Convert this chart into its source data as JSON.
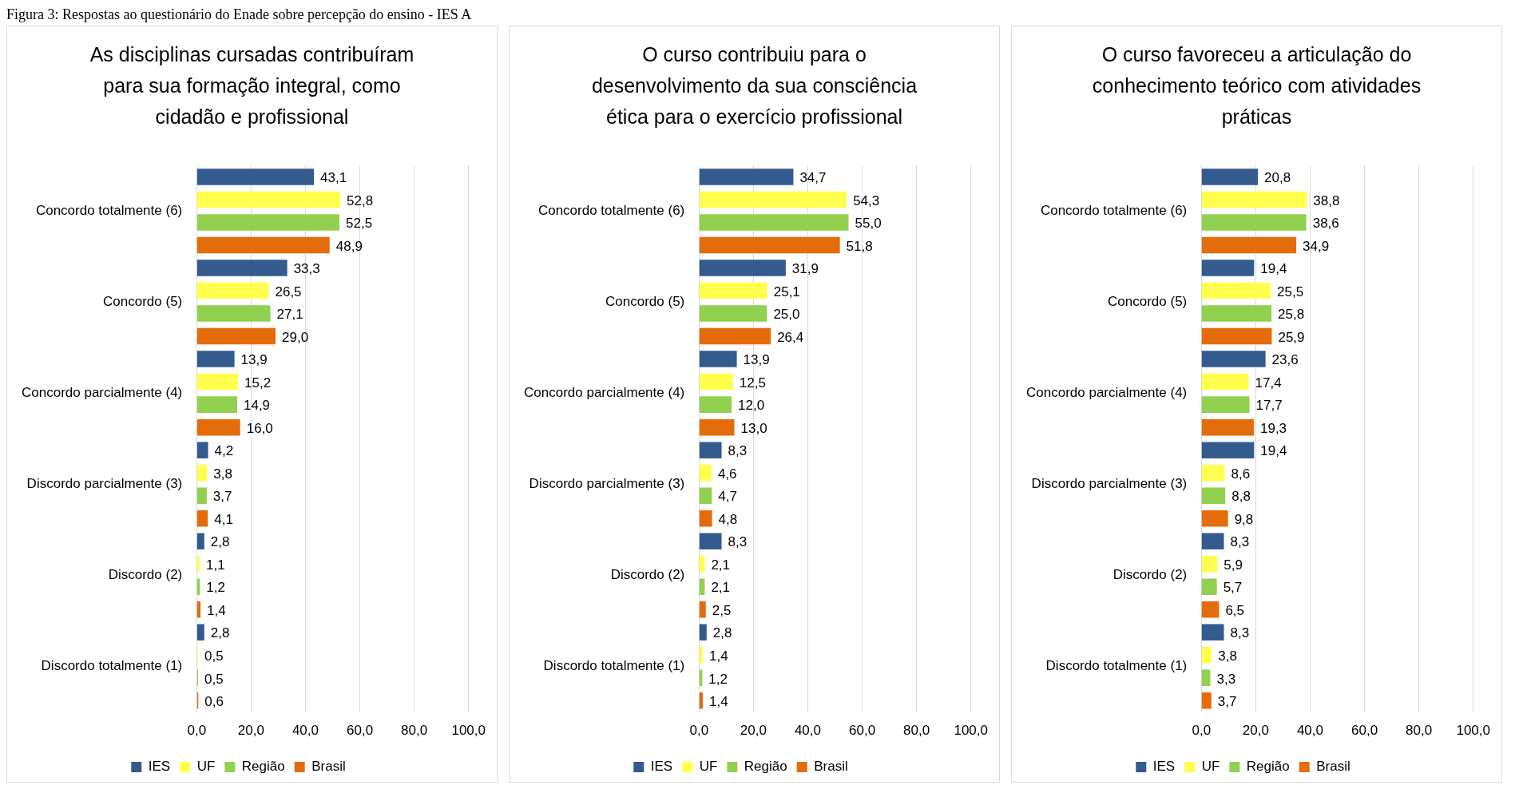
{
  "chart_data": [
    {
      "type": "bar",
      "orientation": "horizontal",
      "title": "As disciplinas cursadas contribuíram para sua formação integral, como cidadão e profissional",
      "annotations": [
        "Figura 3: Respostas ao questionário do Enade sobre percepção do ensino - IES A"
      ],
      "categories": [
        "Concordo totalmente (6)",
        "Concordo (5)",
        "Concordo parcialmente (4)",
        "Discordo parcialmente (3)",
        "Discordo (2)",
        "Discordo totalmente (1)"
      ],
      "series": [
        {
          "name": "IES",
          "color": "#335b8e",
          "values": [
            43.1,
            33.3,
            13.9,
            4.2,
            2.8,
            2.8
          ],
          "value_labels": [
            "43,1",
            "33,3",
            "13,9",
            "4,2",
            "2,8",
            "2,8"
          ]
        },
        {
          "name": "UF",
          "color": "#ffff4d",
          "values": [
            52.8,
            26.5,
            15.2,
            3.8,
            1.1,
            0.5
          ],
          "value_labels": [
            "52,8",
            "26,5",
            "15,2",
            "3,8",
            "1,1",
            "0,5"
          ]
        },
        {
          "name": "Região",
          "color": "#92d050",
          "values": [
            52.5,
            27.1,
            14.9,
            3.7,
            1.2,
            0.5
          ],
          "value_labels": [
            "52,5",
            "27,1",
            "14,9",
            "3,7",
            "1,2",
            "0,5"
          ]
        },
        {
          "name": "Brasil",
          "color": "#e46c0a",
          "values": [
            48.9,
            29.0,
            16.0,
            4.1,
            1.4,
            0.6
          ],
          "value_labels": [
            "48,9",
            "29,0",
            "16,0",
            "4,1",
            "1,4",
            "0,6"
          ]
        }
      ],
      "xlim": [
        0,
        100
      ],
      "xticks": [
        {
          "value": 0,
          "label": "0,0"
        },
        {
          "value": 20,
          "label": "20,0"
        },
        {
          "value": 40,
          "label": "40,0"
        },
        {
          "value": 60,
          "label": "60,0"
        },
        {
          "value": 80,
          "label": "80,0"
        },
        {
          "value": 100,
          "label": "100,0"
        }
      ],
      "grid": "x",
      "legend": "bottom"
    },
    {
      "type": "bar",
      "orientation": "horizontal",
      "title": "O curso contribuiu para o desenvolvimento da sua consciência ética para o exercício profissional",
      "categories": [
        "Concordo totalmente (6)",
        "Concordo (5)",
        "Concordo parcialmente (4)",
        "Discordo parcialmente (3)",
        "Discordo (2)",
        "Discordo totalmente (1)"
      ],
      "series": [
        {
          "name": "IES",
          "color": "#335b8e",
          "values": [
            34.7,
            31.9,
            13.9,
            8.3,
            8.3,
            2.8
          ],
          "value_labels": [
            "34,7",
            "31,9",
            "13,9",
            "8,3",
            "8,3",
            "2,8"
          ]
        },
        {
          "name": "UF",
          "color": "#ffff4d",
          "values": [
            54.3,
            25.1,
            12.5,
            4.6,
            2.1,
            1.4
          ],
          "value_labels": [
            "54,3",
            "25,1",
            "12,5",
            "4,6",
            "2,1",
            "1,4"
          ]
        },
        {
          "name": "Região",
          "color": "#92d050",
          "values": [
            55.0,
            25.0,
            12.0,
            4.7,
            2.1,
            1.2
          ],
          "value_labels": [
            "55,0",
            "25,0",
            "12,0",
            "4,7",
            "2,1",
            "1,2"
          ]
        },
        {
          "name": "Brasil",
          "color": "#e46c0a",
          "values": [
            51.8,
            26.4,
            13.0,
            4.8,
            2.5,
            1.4
          ],
          "value_labels": [
            "51,8",
            "26,4",
            "13,0",
            "4,8",
            "2,5",
            "1,4"
          ]
        }
      ],
      "xlim": [
        0,
        100
      ],
      "xticks": [
        {
          "value": 0,
          "label": "0,0"
        },
        {
          "value": 20,
          "label": "20,0"
        },
        {
          "value": 40,
          "label": "40,0"
        },
        {
          "value": 60,
          "label": "60,0"
        },
        {
          "value": 80,
          "label": "80,0"
        },
        {
          "value": 100,
          "label": "100,0"
        }
      ],
      "grid": "x",
      "legend": "bottom"
    },
    {
      "type": "bar",
      "orientation": "horizontal",
      "title": "O curso favoreceu a articulação do conhecimento teórico com atividades práticas",
      "categories": [
        "Concordo totalmente (6)",
        "Concordo (5)",
        "Concordo parcialmente (4)",
        "Discordo parcialmente (3)",
        "Discordo (2)",
        "Discordo totalmente (1)"
      ],
      "series": [
        {
          "name": "IES",
          "color": "#335b8e",
          "values": [
            20.8,
            19.4,
            23.6,
            19.4,
            8.3,
            8.3
          ],
          "value_labels": [
            "20,8",
            "19,4",
            "23,6",
            "19,4",
            "8,3",
            "8,3"
          ]
        },
        {
          "name": "UF",
          "color": "#ffff4d",
          "values": [
            38.8,
            25.5,
            17.4,
            8.6,
            5.9,
            3.8
          ],
          "value_labels": [
            "38,8",
            "25,5",
            "17,4",
            "8,6",
            "5,9",
            "3,8"
          ]
        },
        {
          "name": "Região",
          "color": "#92d050",
          "values": [
            38.6,
            25.8,
            17.7,
            8.8,
            5.7,
            3.3
          ],
          "value_labels": [
            "38,6",
            "25,8",
            "17,7",
            "8,8",
            "5,7",
            "3,3"
          ]
        },
        {
          "name": "Brasil",
          "color": "#e46c0a",
          "values": [
            34.9,
            25.9,
            19.3,
            9.8,
            6.5,
            3.7
          ],
          "value_labels": [
            "34,9",
            "25,9",
            "19,3",
            "9,8",
            "6,5",
            "3,7"
          ]
        }
      ],
      "xlim": [
        0,
        100
      ],
      "xticks": [
        {
          "value": 0,
          "label": "0,0"
        },
        {
          "value": 20,
          "label": "20,0"
        },
        {
          "value": 40,
          "label": "40,0"
        },
        {
          "value": 60,
          "label": "60,0"
        },
        {
          "value": 80,
          "label": "80,0"
        },
        {
          "value": 100,
          "label": "100,0"
        }
      ],
      "grid": "x",
      "legend": "bottom"
    }
  ]
}
